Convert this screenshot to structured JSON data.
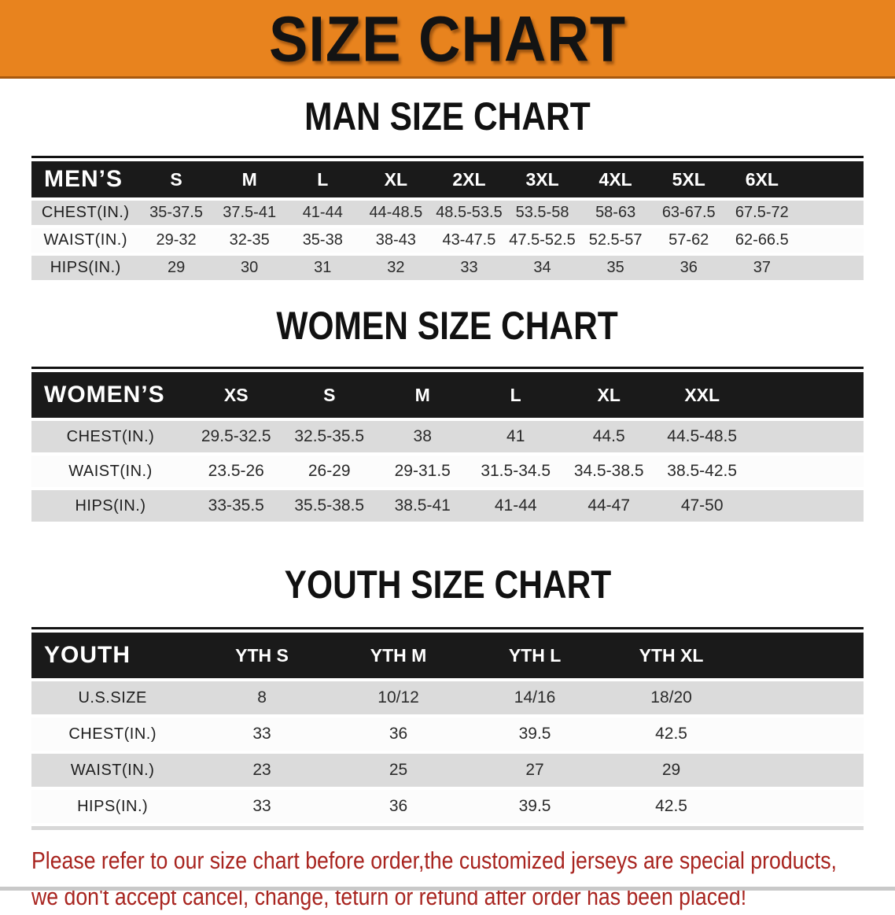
{
  "banner": {
    "title": "SIZE CHART"
  },
  "colors": {
    "banner_bg": "#E8831E",
    "banner_text": "#131313",
    "table_header_bg": "#1A1A1A",
    "table_header_text": "#FFFFFF",
    "stripe_gray": "#DBDBDB",
    "stripe_white": "#FCFCFC",
    "cell_text": "#2A2A2A",
    "disclaimer_text": "#A8241F"
  },
  "sections": [
    {
      "key": "mens",
      "heading": "MAN SIZE CHART",
      "table": {
        "header_label": "MEN’S",
        "columns": [
          "S",
          "M",
          "L",
          "XL",
          "2XL",
          "3XL",
          "4XL",
          "5XL",
          "6XL"
        ],
        "rows": [
          {
            "label": "CHEST(IN.)",
            "values": [
              "35-37.5",
              "37.5-41",
              "41-44",
              "44-48.5",
              "48.5-53.5",
              "53.5-58",
              "58-63",
              "63-67.5",
              "67.5-72"
            ]
          },
          {
            "label": "WAIST(IN.)",
            "values": [
              "29-32",
              "32-35",
              "35-38",
              "38-43",
              "43-47.5",
              "47.5-52.5",
              "52.5-57",
              "57-62",
              "62-66.5"
            ]
          },
          {
            "label": "HIPS(IN.)",
            "values": [
              "29",
              "30",
              "31",
              "32",
              "33",
              "34",
              "35",
              "36",
              "37"
            ]
          }
        ]
      }
    },
    {
      "key": "womens",
      "heading": "WOMEN SIZE CHART",
      "table": {
        "header_label": "WOMEN’S",
        "columns": [
          "XS",
          "S",
          "M",
          "L",
          "XL",
          "XXL"
        ],
        "rows": [
          {
            "label": "CHEST(IN.)",
            "values": [
              "29.5-32.5",
              "32.5-35.5",
              "38",
              "41",
              "44.5",
              "44.5-48.5"
            ]
          },
          {
            "label": "WAIST(IN.)",
            "values": [
              "23.5-26",
              "26-29",
              "29-31.5",
              "31.5-34.5",
              "34.5-38.5",
              "38.5-42.5"
            ]
          },
          {
            "label": "HIPS(IN.)",
            "values": [
              "33-35.5",
              "35.5-38.5",
              "38.5-41",
              "41-44",
              "44-47",
              "47-50"
            ]
          }
        ]
      }
    },
    {
      "key": "youth",
      "heading": "YOUTH SIZE CHART",
      "table": {
        "header_label": "YOUTH",
        "columns": [
          "YTH S",
          "YTH M",
          "YTH L",
          "YTH XL"
        ],
        "rows": [
          {
            "label": "U.S.SIZE",
            "values": [
              "8",
              "10/12",
              "14/16",
              "18/20"
            ]
          },
          {
            "label": "CHEST(IN.)",
            "values": [
              "33",
              "36",
              "39.5",
              "42.5"
            ]
          },
          {
            "label": "WAIST(IN.)",
            "values": [
              "23",
              "25",
              "27",
              "29"
            ]
          },
          {
            "label": "HIPS(IN.)",
            "values": [
              "33",
              "36",
              "39.5",
              "42.5"
            ]
          }
        ]
      }
    }
  ],
  "disclaimer": {
    "line1": "Please refer to our size chart before order,the customized jerseys are special products,",
    "line2": "we don't accept cancel, change, teturn or refund after order has been placed!"
  }
}
